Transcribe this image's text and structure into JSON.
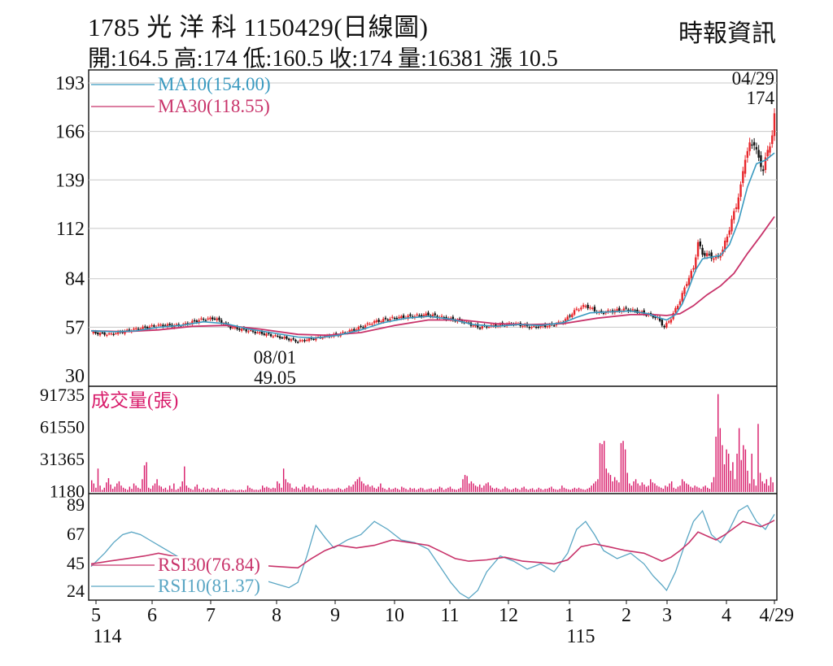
{
  "header": {
    "line1": "1785  光 洋 科 1150429(日線圖)",
    "line2": "開:164.5 高:174 低:160.5 收:174 量:16381 漲 10.5",
    "source": "時報資訊"
  },
  "colors": {
    "up": "#e8262b",
    "down": "#111111",
    "ma10": "#3a9ac0",
    "ma30": "#c8336a",
    "volume": "#d81b6a",
    "rsi30": "#c8336a",
    "rsi10": "#5aa6c4",
    "grid": "#c8c8c8"
  },
  "chart_data": [
    {
      "type": "candlestick",
      "title": "1785 光 洋 科 1150429(日線圖)",
      "y_ticks": [
        193,
        166,
        139,
        112,
        84,
        57,
        30
      ],
      "ylim": [
        30,
        193
      ],
      "legend": [
        {
          "label": "MA10(154.00)",
          "color": "#3a9ac0"
        },
        {
          "label": "MA30(118.55)",
          "color": "#c8336a"
        }
      ],
      "annotations": [
        {
          "text": "04/29",
          "sub": "174",
          "at": "last-high"
        },
        {
          "text": "08/01",
          "sub": "49.05",
          "at": "period-low"
        }
      ],
      "x_month_labels": [
        "5",
        "6",
        "7",
        "8",
        "9",
        "10",
        "11",
        "12",
        "1",
        "2",
        "3",
        "4",
        "4/29"
      ],
      "x_year_labels": [
        {
          "label": "114",
          "month": "5"
        },
        {
          "label": "115",
          "month": "1"
        }
      ],
      "close_path": [
        [
          0,
          54
        ],
        [
          8,
          53
        ],
        [
          20,
          56
        ],
        [
          30,
          58
        ],
        [
          40,
          58
        ],
        [
          48,
          61
        ],
        [
          55,
          62
        ],
        [
          62,
          57
        ],
        [
          70,
          55
        ],
        [
          78,
          53
        ],
        [
          86,
          51
        ],
        [
          92,
          49.05
        ],
        [
          100,
          51
        ],
        [
          110,
          53
        ],
        [
          118,
          56
        ],
        [
          126,
          60
        ],
        [
          134,
          62
        ],
        [
          142,
          63
        ],
        [
          150,
          64
        ],
        [
          158,
          62
        ],
        [
          166,
          60
        ],
        [
          172,
          57
        ],
        [
          180,
          58
        ],
        [
          188,
          59
        ],
        [
          196,
          57
        ],
        [
          204,
          58
        ],
        [
          210,
          60
        ],
        [
          216,
          67
        ],
        [
          220,
          69
        ],
        [
          226,
          65
        ],
        [
          232,
          66
        ],
        [
          238,
          67
        ],
        [
          242,
          66
        ],
        [
          248,
          64
        ],
        [
          252,
          62
        ],
        [
          255,
          57
        ],
        [
          258,
          62
        ],
        [
          262,
          72
        ],
        [
          265,
          82
        ],
        [
          268,
          90
        ],
        [
          270,
          104
        ],
        [
          272,
          98
        ],
        [
          275,
          97
        ],
        [
          278,
          95
        ],
        [
          281,
          100
        ],
        [
          284,
          112
        ],
        [
          287,
          125
        ],
        [
          289,
          135
        ],
        [
          291,
          152
        ],
        [
          293,
          158
        ],
        [
          295,
          160
        ],
        [
          297,
          150
        ],
        [
          299,
          145
        ],
        [
          301,
          155
        ],
        [
          303,
          164
        ],
        [
          304,
          174
        ]
      ],
      "ma10": [
        [
          0,
          55
        ],
        [
          10,
          54.5
        ],
        [
          20,
          55
        ],
        [
          30,
          57
        ],
        [
          40,
          58
        ],
        [
          50,
          60
        ],
        [
          60,
          59
        ],
        [
          70,
          56
        ],
        [
          80,
          54
        ],
        [
          92,
          51.5
        ],
        [
          100,
          51
        ],
        [
          110,
          52.5
        ],
        [
          120,
          55.5
        ],
        [
          130,
          59.5
        ],
        [
          140,
          62
        ],
        [
          150,
          63
        ],
        [
          160,
          61.5
        ],
        [
          170,
          58.5
        ],
        [
          180,
          57.5
        ],
        [
          190,
          58.5
        ],
        [
          200,
          58
        ],
        [
          210,
          59.5
        ],
        [
          216,
          62.5
        ],
        [
          222,
          65
        ],
        [
          230,
          65.5
        ],
        [
          240,
          66
        ],
        [
          248,
          64.5
        ],
        [
          252,
          62.5
        ],
        [
          256,
          61
        ],
        [
          260,
          64
        ],
        [
          263,
          70
        ],
        [
          266,
          79
        ],
        [
          269,
          89
        ],
        [
          272,
          95
        ],
        [
          276,
          96
        ],
        [
          280,
          97
        ],
        [
          284,
          103
        ],
        [
          288,
          116
        ],
        [
          292,
          135
        ],
        [
          296,
          148
        ],
        [
          300,
          150
        ],
        [
          304,
          154
        ]
      ],
      "ma30": [
        [
          0,
          55
        ],
        [
          15,
          54.5
        ],
        [
          30,
          55.5
        ],
        [
          45,
          57.5
        ],
        [
          60,
          58
        ],
        [
          75,
          56
        ],
        [
          92,
          53
        ],
        [
          105,
          52.5
        ],
        [
          120,
          54
        ],
        [
          135,
          58
        ],
        [
          150,
          61
        ],
        [
          165,
          61
        ],
        [
          180,
          59
        ],
        [
          195,
          58.5
        ],
        [
          210,
          59
        ],
        [
          225,
          62
        ],
        [
          240,
          64
        ],
        [
          250,
          64
        ],
        [
          256,
          63.5
        ],
        [
          262,
          64.5
        ],
        [
          268,
          69
        ],
        [
          274,
          75
        ],
        [
          280,
          80
        ],
        [
          286,
          87
        ],
        [
          292,
          98
        ],
        [
          298,
          108
        ],
        [
          304,
          118.55
        ]
      ]
    },
    {
      "type": "bar",
      "title": "成交量(張)",
      "y_ticks": [
        91735,
        61550,
        31365,
        1180
      ],
      "ylim": [
        0,
        91735
      ],
      "values": [
        11000,
        8000,
        4000,
        22000,
        6000,
        2000,
        4000,
        9000,
        13000,
        7000,
        3000,
        5000,
        8000,
        10000,
        6000,
        4000,
        3000,
        2000,
        5000,
        3000,
        8000,
        6000,
        4000,
        3000,
        12000,
        25000,
        28000,
        4000,
        3000,
        6000,
        8000,
        12000,
        6000,
        5000,
        3000,
        4000,
        2000,
        6000,
        3000,
        8000,
        2000,
        3000,
        5000,
        10000,
        24000,
        6000,
        4000,
        3000,
        2000,
        5000,
        7000,
        3000,
        2000,
        4000,
        2000,
        3000,
        2000,
        4000,
        3000,
        2000,
        4000,
        1500,
        2500,
        3000,
        2000,
        1500,
        2000,
        2500,
        1800,
        1600,
        2000,
        2200,
        1500,
        2000,
        6000,
        4000,
        3000,
        2000,
        2200,
        1800,
        2500,
        6000,
        4000,
        5000,
        4000,
        3000,
        4000,
        3500,
        10000,
        8000,
        4000,
        22000,
        12000,
        9000,
        8000,
        4000,
        3000,
        5000,
        3500,
        2000,
        5000,
        7000,
        4000,
        5000,
        3500,
        6000,
        3000,
        4000,
        2500,
        2000,
        3000,
        2800,
        3500,
        2500,
        3000,
        2600,
        2800,
        4000,
        3000,
        2000,
        3000,
        4000,
        6000,
        5000,
        7000,
        10000,
        12000,
        14000,
        10000,
        8000,
        6000,
        7000,
        5000,
        6000,
        4000,
        3000,
        5000,
        8000,
        4000,
        3000,
        2000,
        4000,
        2500,
        3000,
        4000,
        3000,
        2000,
        5000,
        4000,
        3000,
        2000,
        4000,
        3000,
        3500,
        2000,
        3000,
        4000,
        3500,
        2000,
        2500,
        3000,
        3500,
        2000,
        2500,
        3000,
        5000,
        4000,
        2000,
        3000,
        4000,
        5000,
        3000,
        2500,
        2000,
        3000,
        4000,
        12000,
        16000,
        15000,
        8000,
        10000,
        8000,
        6000,
        5000,
        7000,
        4000,
        6000,
        8000,
        9000,
        6000,
        4000,
        3000,
        4000,
        3000,
        2000,
        3000,
        5000,
        3500,
        2500,
        2000,
        3000,
        4000,
        3000,
        2000,
        4000,
        5000,
        3000,
        2000,
        3000,
        3500,
        2000,
        2500,
        4000,
        3000,
        2000,
        3000,
        3000,
        4000,
        5000,
        3000,
        2500,
        2000,
        3000,
        6000,
        4000,
        3000,
        2500,
        2000,
        3000,
        4000,
        3000,
        4000,
        3000,
        2500,
        2000,
        3000,
        4000,
        6000,
        8000,
        10000,
        12000,
        46000,
        45000,
        48000,
        22000,
        18000,
        16000,
        10000,
        14000,
        11000,
        9000,
        46000,
        48000,
        40000,
        18000,
        8000,
        6000,
        10000,
        12000,
        8000,
        6000,
        9000,
        7000,
        5000,
        6000,
        12000,
        9000,
        8000,
        6000,
        5000,
        4000,
        3000,
        6000,
        5000,
        8000,
        10000,
        4000,
        3000,
        5000,
        6000,
        12000,
        10000,
        8000,
        7000,
        5000,
        4000,
        6000,
        5000,
        4000,
        3000,
        5000,
        6000,
        4000,
        3000,
        9000,
        14000,
        52000,
        92000,
        60000,
        44000,
        26000,
        40000,
        36000,
        20000,
        28000,
        12000,
        36000,
        60000,
        30000,
        44000,
        40000,
        20000,
        8000,
        36000,
        12000,
        6000,
        64000,
        18000,
        10000,
        8000,
        12000,
        6000,
        14000,
        9000
      ]
    },
    {
      "type": "line",
      "title": "RSI",
      "y_ticks": [
        89,
        67,
        45,
        24
      ],
      "ylim": [
        14,
        92
      ],
      "legend": [
        {
          "label": "RSI30(76.84)",
          "color": "#c8336a"
        },
        {
          "label": "RSI10(81.37)",
          "color": "#5aa6c4"
        }
      ],
      "rsi30": [
        [
          0,
          44
        ],
        [
          8,
          46
        ],
        [
          16,
          48
        ],
        [
          24,
          50
        ],
        [
          30,
          52
        ],
        [
          36,
          50
        ],
        [
          42,
          48
        ],
        [
          50,
          46
        ],
        [
          58,
          45
        ],
        [
          66,
          44
        ],
        [
          74,
          43
        ],
        [
          82,
          42
        ],
        [
          92,
          41
        ],
        [
          98,
          48
        ],
        [
          104,
          54
        ],
        [
          110,
          58
        ],
        [
          118,
          56
        ],
        [
          126,
          58
        ],
        [
          134,
          62
        ],
        [
          142,
          60
        ],
        [
          150,
          58
        ],
        [
          156,
          53
        ],
        [
          162,
          48
        ],
        [
          168,
          46
        ],
        [
          176,
          47
        ],
        [
          184,
          49
        ],
        [
          192,
          46
        ],
        [
          200,
          45
        ],
        [
          206,
          44
        ],
        [
          212,
          47
        ],
        [
          218,
          57
        ],
        [
          224,
          59
        ],
        [
          230,
          57
        ],
        [
          238,
          54
        ],
        [
          246,
          52
        ],
        [
          250,
          49
        ],
        [
          254,
          46
        ],
        [
          258,
          49
        ],
        [
          262,
          54
        ],
        [
          266,
          60
        ],
        [
          270,
          68
        ],
        [
          274,
          65
        ],
        [
          278,
          62
        ],
        [
          282,
          66
        ],
        [
          286,
          71
        ],
        [
          290,
          76
        ],
        [
          294,
          74
        ],
        [
          298,
          72
        ],
        [
          302,
          75
        ],
        [
          304,
          76.84
        ]
      ],
      "rsi10": [
        [
          0,
          42
        ],
        [
          6,
          52
        ],
        [
          10,
          60
        ],
        [
          14,
          66
        ],
        [
          18,
          68
        ],
        [
          22,
          66
        ],
        [
          26,
          62
        ],
        [
          30,
          58
        ],
        [
          36,
          52
        ],
        [
          42,
          46
        ],
        [
          50,
          44
        ],
        [
          58,
          40
        ],
        [
          66,
          38
        ],
        [
          74,
          33
        ],
        [
          82,
          29
        ],
        [
          88,
          26
        ],
        [
          92,
          30
        ],
        [
          96,
          50
        ],
        [
          100,
          73
        ],
        [
          104,
          64
        ],
        [
          108,
          56
        ],
        [
          114,
          62
        ],
        [
          120,
          66
        ],
        [
          126,
          76
        ],
        [
          132,
          70
        ],
        [
          138,
          62
        ],
        [
          144,
          60
        ],
        [
          150,
          55
        ],
        [
          156,
          40
        ],
        [
          160,
          30
        ],
        [
          164,
          22
        ],
        [
          168,
          18
        ],
        [
          172,
          24
        ],
        [
          176,
          38
        ],
        [
          182,
          50
        ],
        [
          188,
          46
        ],
        [
          194,
          40
        ],
        [
          200,
          44
        ],
        [
          206,
          38
        ],
        [
          212,
          52
        ],
        [
          216,
          70
        ],
        [
          220,
          76
        ],
        [
          224,
          66
        ],
        [
          228,
          54
        ],
        [
          234,
          48
        ],
        [
          240,
          52
        ],
        [
          246,
          44
        ],
        [
          250,
          35
        ],
        [
          254,
          28
        ],
        [
          256,
          24
        ],
        [
          260,
          38
        ],
        [
          264,
          58
        ],
        [
          268,
          76
        ],
        [
          272,
          84
        ],
        [
          276,
          66
        ],
        [
          280,
          60
        ],
        [
          284,
          70
        ],
        [
          288,
          84
        ],
        [
          292,
          88
        ],
        [
          296,
          76
        ],
        [
          300,
          70
        ],
        [
          304,
          81.37
        ]
      ]
    }
  ]
}
